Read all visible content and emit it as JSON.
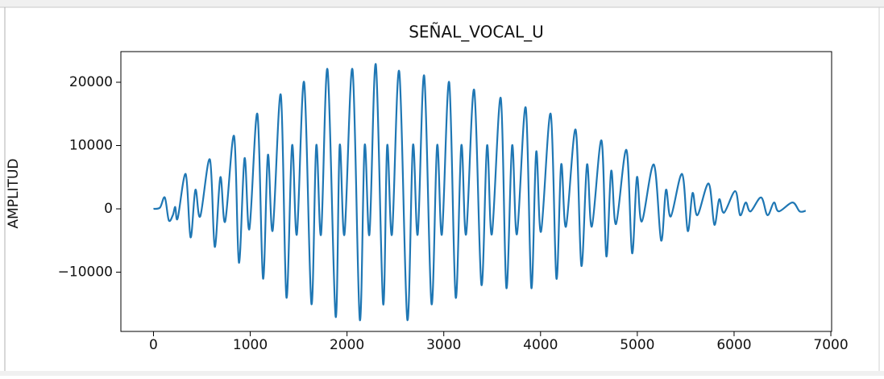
{
  "chart_data": {
    "type": "line",
    "title": "SEÑAL_VOCAL_U",
    "y_label": "AMPLITUD",
    "color": "#1f77b4",
    "xlim": [
      -337,
      7008
    ],
    "ylim": [
      -19360,
      24840
    ],
    "xticks": [
      0,
      1000,
      2000,
      3000,
      4000,
      5000,
      6000,
      7000
    ],
    "yticks": [
      {
        "value": -10000,
        "label": "−10000"
      },
      0,
      10000,
      20000
    ],
    "x": [
      0,
      67,
      117,
      158,
      200,
      225,
      250,
      333,
      383,
      433,
      483,
      583,
      633,
      691,
      741,
      833,
      883,
      941,
      991,
      1074,
      1132,
      1182,
      1232,
      1316,
      1374,
      1432,
      1482,
      1557,
      1632,
      1682,
      1732,
      1799,
      1882,
      1924,
      1974,
      2057,
      2132,
      2182,
      2232,
      2298,
      2373,
      2415,
      2465,
      2540,
      2623,
      2681,
      2731,
      2798,
      2873,
      2931,
      2981,
      3056,
      3123,
      3181,
      3231,
      3314,
      3389,
      3447,
      3497,
      3589,
      3647,
      3706,
      3756,
      3847,
      3905,
      3955,
      4005,
      4105,
      4164,
      4213,
      4263,
      4363,
      4422,
      4480,
      4530,
      4630,
      4680,
      4730,
      4780,
      4888,
      4946,
      4996,
      5046,
      5171,
      5246,
      5296,
      5346,
      5463,
      5521,
      5571,
      5621,
      5737,
      5796,
      5846,
      5896,
      6012,
      6062,
      6120,
      6170,
      6279,
      6345,
      6412,
      6462,
      6603,
      6678,
      6740
    ],
    "values": [
      0,
      200,
      1800,
      -1800,
      -1000,
      300,
      -1500,
      5500,
      -4500,
      3000,
      -1200,
      7800,
      -6000,
      5000,
      -2000,
      11500,
      -8500,
      8000,
      -3200,
      15000,
      -11000,
      8500,
      -3400,
      18000,
      -14000,
      10000,
      -4000,
      20000,
      -15000,
      10000,
      -4000,
      22000,
      -17000,
      10000,
      -4000,
      22000,
      -17500,
      10000,
      -4000,
      22800,
      -15000,
      10000,
      -4000,
      21700,
      -17500,
      10000,
      -4000,
      21000,
      -15000,
      10000,
      -4000,
      20000,
      -14000,
      10000,
      -4000,
      18800,
      -12000,
      10000,
      -4000,
      17500,
      -12500,
      10000,
      -4000,
      16000,
      -12500,
      9000,
      -3600,
      15000,
      -11000,
      7000,
      -2800,
      12500,
      -9000,
      7000,
      -2800,
      10800,
      -7500,
      6000,
      -2400,
      9300,
      -7000,
      5000,
      -2000,
      7000,
      -5000,
      3000,
      -1200,
      5500,
      -3500,
      2500,
      -1000,
      4000,
      -2500,
      1500,
      -600,
      2800,
      -1000,
      1000,
      -400,
      1800,
      -1000,
      1000,
      -400,
      1000,
      -400,
      -300
    ]
  }
}
